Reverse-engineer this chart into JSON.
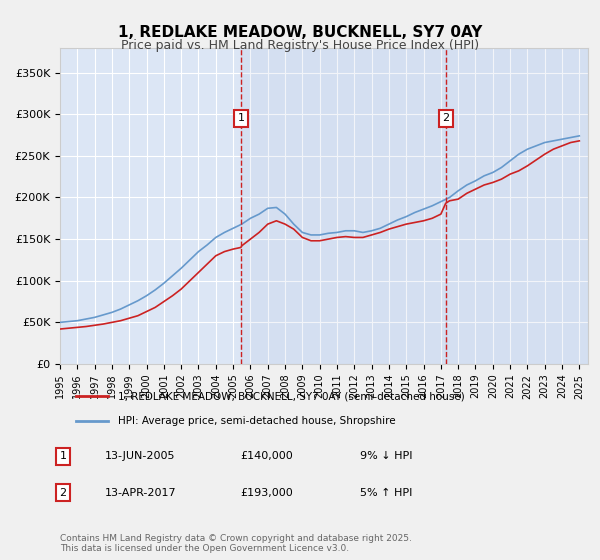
{
  "title1": "1, REDLAKE MEADOW, BUCKNELL, SY7 0AY",
  "title2": "Price paid vs. HM Land Registry's House Price Index (HPI)",
  "background_color": "#e8eef7",
  "plot_bg_color": "#dce6f5",
  "legend_label_red": "1, REDLAKE MEADOW, BUCKNELL, SY7 0AY (semi-detached house)",
  "legend_label_blue": "HPI: Average price, semi-detached house, Shropshire",
  "annotation1_date": "13-JUN-2005",
  "annotation1_price": "£140,000",
  "annotation1_hpi": "9% ↓ HPI",
  "annotation2_date": "13-APR-2017",
  "annotation2_price": "£193,000",
  "annotation2_hpi": "5% ↑ HPI",
  "vline1_x": 2005.45,
  "vline2_x": 2017.28,
  "footer": "Contains HM Land Registry data © Crown copyright and database right 2025.\nThis data is licensed under the Open Government Licence v3.0.",
  "ylim": [
    0,
    380000
  ],
  "xlim": [
    1995,
    2025.5
  ],
  "yticks": [
    0,
    50000,
    100000,
    150000,
    200000,
    250000,
    300000,
    350000
  ],
  "xticks": [
    1995,
    1996,
    1997,
    1998,
    1999,
    2000,
    2001,
    2002,
    2003,
    2004,
    2005,
    2006,
    2007,
    2008,
    2009,
    2010,
    2011,
    2012,
    2013,
    2014,
    2015,
    2016,
    2017,
    2018,
    2019,
    2020,
    2021,
    2022,
    2023,
    2024,
    2025
  ],
  "red_x": [
    1995,
    1995.5,
    1996,
    1996.5,
    1997,
    1997.5,
    1998,
    1998.5,
    1999,
    1999.5,
    2000,
    2000.5,
    2001,
    2001.5,
    2002,
    2002.5,
    2003,
    2003.5,
    2004,
    2004.5,
    2005,
    2005.45,
    2005.5,
    2006,
    2006.5,
    2007,
    2007.5,
    2008,
    2008.5,
    2009,
    2009.5,
    2010,
    2010.5,
    2011,
    2011.5,
    2012,
    2012.5,
    2013,
    2013.5,
    2014,
    2014.5,
    2015,
    2015.5,
    2016,
    2016.5,
    2017,
    2017.28,
    2017.5,
    2018,
    2018.5,
    2019,
    2019.5,
    2020,
    2020.5,
    2021,
    2021.5,
    2022,
    2022.5,
    2023,
    2023.5,
    2024,
    2024.5,
    2025
  ],
  "red_y": [
    42000,
    43000,
    44000,
    45000,
    46500,
    48000,
    50000,
    52000,
    55000,
    58000,
    63000,
    68000,
    75000,
    82000,
    90000,
    100000,
    110000,
    120000,
    130000,
    135000,
    138000,
    140000,
    142000,
    150000,
    158000,
    168000,
    172000,
    168000,
    162000,
    152000,
    148000,
    148000,
    150000,
    152000,
    153000,
    152000,
    152000,
    155000,
    158000,
    162000,
    165000,
    168000,
    170000,
    172000,
    175000,
    180000,
    193000,
    196000,
    198000,
    205000,
    210000,
    215000,
    218000,
    222000,
    228000,
    232000,
    238000,
    245000,
    252000,
    258000,
    262000,
    266000,
    268000
  ],
  "blue_x": [
    1995,
    1995.5,
    1996,
    1996.5,
    1997,
    1997.5,
    1998,
    1998.5,
    1999,
    1999.5,
    2000,
    2000.5,
    2001,
    2001.5,
    2002,
    2002.5,
    2003,
    2003.5,
    2004,
    2004.5,
    2005,
    2005.5,
    2006,
    2006.5,
    2007,
    2007.5,
    2008,
    2008.5,
    2009,
    2009.5,
    2010,
    2010.5,
    2011,
    2011.5,
    2012,
    2012.5,
    2013,
    2013.5,
    2014,
    2014.5,
    2015,
    2015.5,
    2016,
    2016.5,
    2017,
    2017.5,
    2018,
    2018.5,
    2019,
    2019.5,
    2020,
    2020.5,
    2021,
    2021.5,
    2022,
    2022.5,
    2023,
    2023.5,
    2024,
    2024.5,
    2025
  ],
  "blue_y": [
    50000,
    51000,
    52000,
    54000,
    56000,
    59000,
    62000,
    66000,
    71000,
    76000,
    82000,
    89000,
    97000,
    106000,
    115000,
    125000,
    135000,
    143000,
    152000,
    158000,
    163000,
    168000,
    175000,
    180000,
    187000,
    188000,
    180000,
    168000,
    158000,
    155000,
    155000,
    157000,
    158000,
    160000,
    160000,
    158000,
    160000,
    163000,
    168000,
    173000,
    177000,
    182000,
    186000,
    190000,
    195000,
    200000,
    208000,
    215000,
    220000,
    226000,
    230000,
    236000,
    244000,
    252000,
    258000,
    262000,
    266000,
    268000,
    270000,
    272000,
    274000
  ]
}
